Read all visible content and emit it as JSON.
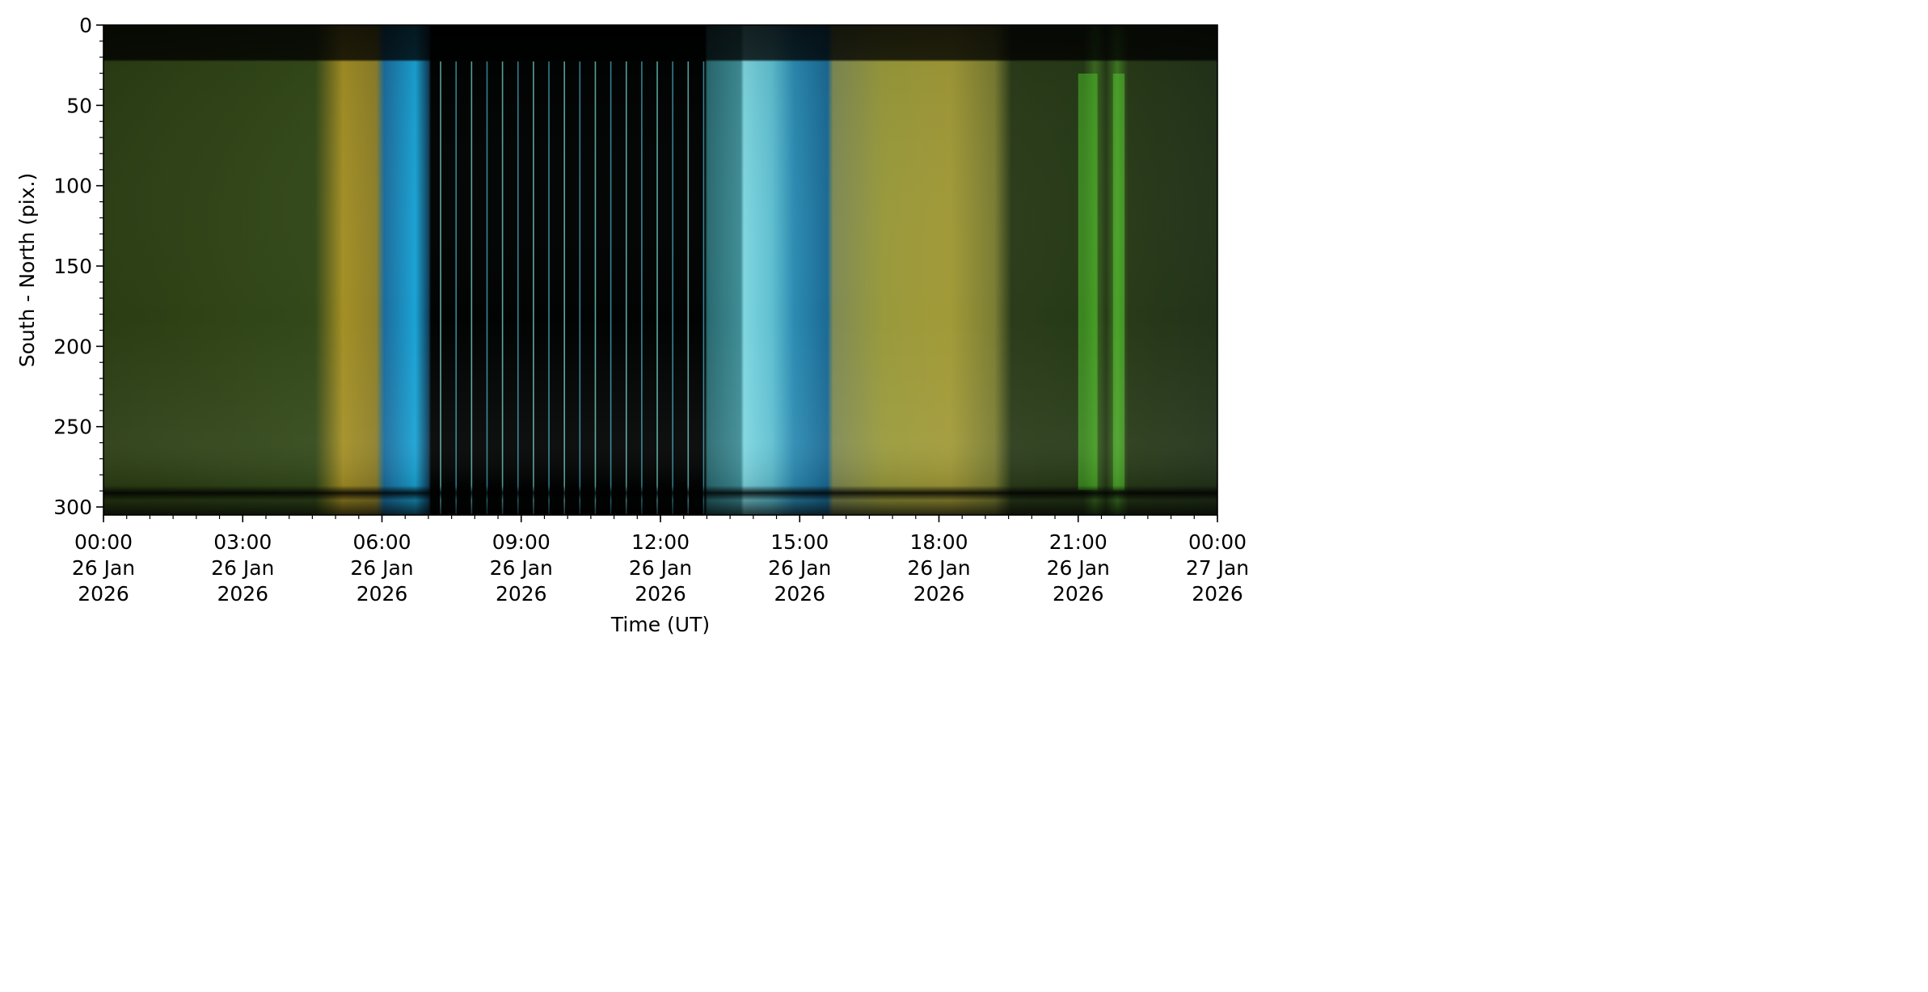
{
  "chart_data": {
    "type": "heatmap",
    "title": "",
    "xlabel": "Time (UT)",
    "ylabel": "South - North (pix.)",
    "x_range": [
      "2026-01-26T00:00",
      "2026-01-27T00:00"
    ],
    "ylim": [
      305,
      0
    ],
    "y_inverted": true,
    "grid": false,
    "x_ticks": [
      {
        "time": "2026-01-26T00:00",
        "lines": [
          "00:00",
          "26 Jan",
          "2026"
        ]
      },
      {
        "time": "2026-01-26T03:00",
        "lines": [
          "03:00",
          "26 Jan",
          "2026"
        ]
      },
      {
        "time": "2026-01-26T06:00",
        "lines": [
          "06:00",
          "26 Jan",
          "2026"
        ]
      },
      {
        "time": "2026-01-26T09:00",
        "lines": [
          "09:00",
          "26 Jan",
          "2026"
        ]
      },
      {
        "time": "2026-01-26T12:00",
        "lines": [
          "12:00",
          "26 Jan",
          "2026"
        ]
      },
      {
        "time": "2026-01-26T15:00",
        "lines": [
          "15:00",
          "26 Jan",
          "2026"
        ]
      },
      {
        "time": "2026-01-26T18:00",
        "lines": [
          "18:00",
          "26 Jan",
          "2026"
        ]
      },
      {
        "time": "2026-01-26T21:00",
        "lines": [
          "21:00",
          "26 Jan",
          "2026"
        ]
      },
      {
        "time": "2026-01-27T00:00",
        "lines": [
          "00:00",
          "27 Jan",
          "2026"
        ]
      }
    ],
    "y_ticks": [
      0,
      50,
      100,
      150,
      200,
      250,
      300
    ],
    "y_minor_step": 10,
    "x_minor_step_minutes": 30,
    "segments": [
      {
        "start": "00:00",
        "end": "05:10",
        "color": "#2f4415",
        "label": "green aurora (night)"
      },
      {
        "start": "05:10",
        "end": "06:00",
        "color": "#9a8a25",
        "label": "yellow band"
      },
      {
        "start": "06:00",
        "end": "07:05",
        "color": "#1f6f9a",
        "label": "blue twilight"
      },
      {
        "start": "07:05",
        "end": "13:00",
        "color": "#000000",
        "label": "daylight gap"
      },
      {
        "start": "13:00",
        "end": "15:40",
        "color": "#4fb0c0",
        "label": "cyan twilight"
      },
      {
        "start": "15:40",
        "end": "19:30",
        "color": "#8b8a3c",
        "label": "yellow-green aurora"
      },
      {
        "start": "19:30",
        "end": "24:00",
        "color": "#253518",
        "label": "green aurora (night)"
      }
    ],
    "highlights": [
      {
        "start": "21:00",
        "end": "21:25",
        "color": "#4ec22a"
      },
      {
        "start": "21:45",
        "end": "22:00",
        "color": "#55c730"
      }
    ]
  }
}
